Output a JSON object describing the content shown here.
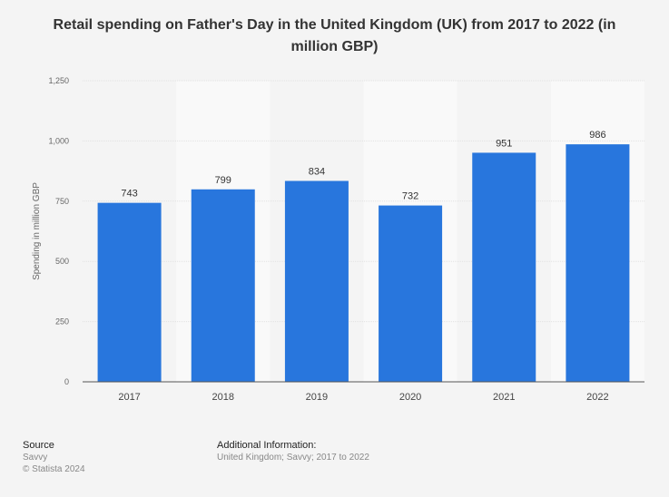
{
  "chart_data": {
    "type": "bar",
    "title": "Retail spending on Father's Day in the United Kingdom (UK) from 2017 to 2022 (in million GBP)",
    "xlabel": "",
    "ylabel": "Spending in million GBP",
    "categories": [
      "2017",
      "2018",
      "2019",
      "2020",
      "2021",
      "2022"
    ],
    "values": [
      743,
      799,
      834,
      732,
      951,
      986
    ],
    "ylim": [
      0,
      1250
    ],
    "yticks": [
      0,
      250,
      500,
      750,
      1000,
      1250
    ],
    "ytick_labels": [
      "0",
      "250",
      "500",
      "750",
      "1,000",
      "1,250"
    ],
    "grid": true,
    "bar_color": "#2876dd"
  },
  "footer": {
    "source_label": "Source",
    "source": "Savvy",
    "copyright": "© Statista 2024",
    "additional_label": "Additional Information:",
    "additional": "United Kingdom; Savvy; 2017 to 2022"
  }
}
